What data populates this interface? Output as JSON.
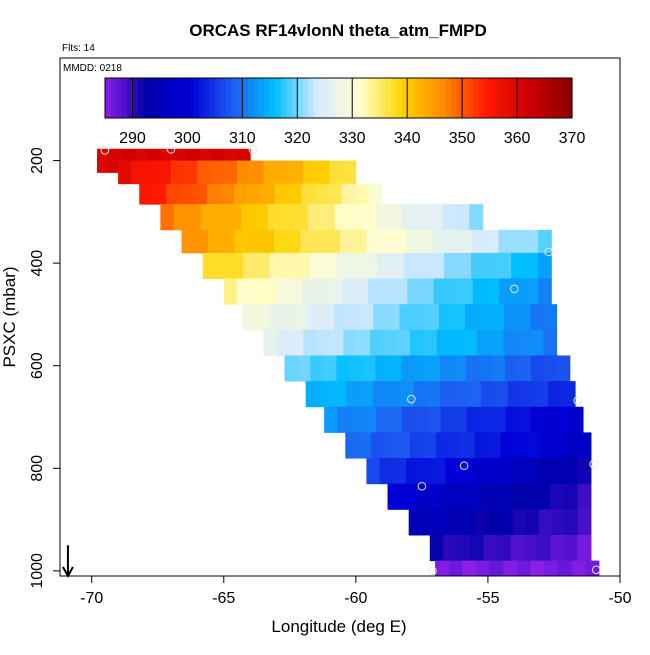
{
  "chart_data": {
    "type": "heatmap",
    "title": "ORCAS RF14vlonN theta_atm_FMPD",
    "annotations": [
      "Flts: 14",
      "MMDD: 0218"
    ],
    "xlabel": "Longitude (deg E)",
    "ylabel": "PSXC (mbar)",
    "xlim": [
      -71.2,
      -50
    ],
    "ylim": [
      1010,
      0
    ],
    "y_reversed": true,
    "x_ticks": [
      -70,
      -65,
      -60,
      -55,
      -50
    ],
    "y_ticks": [
      200,
      400,
      600,
      800,
      1000
    ],
    "grid": false,
    "colorbar": {
      "placement": "top",
      "range": [
        285,
        370
      ],
      "ticks": [
        290,
        300,
        310,
        320,
        330,
        340,
        350,
        360,
        370
      ],
      "colors": [
        "#8b1fe8",
        "#0000aa",
        "#0000d8",
        "#1e5cf2",
        "#00bfff",
        "#d8eaff",
        "#ffffd0",
        "#ffd400",
        "#ff8800",
        "#ff1800",
        "#cc0000",
        "#8b0000"
      ]
    },
    "bands": [
      {
        "p": [
          180,
          180
        ],
        "x": [
          -69.8,
          -64.0
        ],
        "t": [
          361,
          361
        ]
      },
      {
        "p": [
          200,
          245
        ],
        "x": [
          -69.0,
          -60.0
        ],
        "t": [
          359,
          336
        ]
      },
      {
        "p": [
          245,
          285
        ],
        "x": [
          -68.2,
          -59.0
        ],
        "t": [
          356,
          330
        ]
      },
      {
        "p": [
          285,
          335
        ],
        "x": [
          -67.4,
          -55.2
        ],
        "t": [
          348,
          321
        ]
      },
      {
        "p": [
          335,
          380
        ],
        "x": [
          -66.6,
          -52.6
        ],
        "t": [
          346,
          319
        ]
      },
      {
        "p": [
          380,
          430
        ],
        "x": [
          -65.8,
          -52.6
        ],
        "t": [
          339,
          314
        ]
      },
      {
        "p": [
          430,
          480
        ],
        "x": [
          -65.0,
          -52.6
        ],
        "t": [
          334,
          311
        ]
      },
      {
        "p": [
          480,
          530
        ],
        "x": [
          -64.3,
          -52.4
        ],
        "t": [
          330,
          310
        ]
      },
      {
        "p": [
          530,
          580
        ],
        "x": [
          -63.5,
          -52.4
        ],
        "t": [
          326,
          310
        ]
      },
      {
        "p": [
          580,
          630
        ],
        "x": [
          -62.7,
          -51.9
        ],
        "t": [
          320,
          306
        ]
      },
      {
        "p": [
          630,
          680
        ],
        "x": [
          -61.9,
          -51.7
        ],
        "t": [
          316,
          303
        ]
      },
      {
        "p": [
          680,
          730
        ],
        "x": [
          -61.2,
          -51.4
        ],
        "t": [
          313,
          298
        ]
      },
      {
        "p": [
          730,
          780
        ],
        "x": [
          -60.4,
          -51.1
        ],
        "t": [
          310,
          297
        ]
      },
      {
        "p": [
          780,
          830
        ],
        "x": [
          -59.6,
          -51.1
        ],
        "t": [
          306,
          292
        ]
      },
      {
        "p": [
          830,
          880
        ],
        "x": [
          -58.8,
          -51.1
        ],
        "t": [
          300,
          290
        ]
      },
      {
        "p": [
          880,
          930
        ],
        "x": [
          -58.0,
          -51.1
        ],
        "t": [
          296,
          289
        ]
      },
      {
        "p": [
          930,
          980
        ],
        "x": [
          -57.2,
          -51.1
        ],
        "t": [
          292,
          287
        ]
      },
      {
        "p": [
          980,
          1010
        ],
        "x": [
          -57.0,
          -50.8
        ],
        "t": [
          286,
          286
        ]
      }
    ],
    "points": [
      {
        "x": -69.5,
        "y": 180
      },
      {
        "x": -67.0,
        "y": 178
      },
      {
        "x": -63.9,
        "y": 178
      },
      {
        "x": -59.2,
        "y": 388
      },
      {
        "x": -52.7,
        "y": 378
      },
      {
        "x": -54.0,
        "y": 450
      },
      {
        "x": -57.9,
        "y": 665
      },
      {
        "x": -51.6,
        "y": 668
      },
      {
        "x": -55.9,
        "y": 795
      },
      {
        "x": -51.0,
        "y": 792
      },
      {
        "x": -57.5,
        "y": 835
      },
      {
        "x": -57.1,
        "y": 1000
      },
      {
        "x": -50.9,
        "y": 998
      }
    ],
    "arrow": {
      "x": -70.9,
      "y_from": 950,
      "y_to": 1010
    }
  }
}
